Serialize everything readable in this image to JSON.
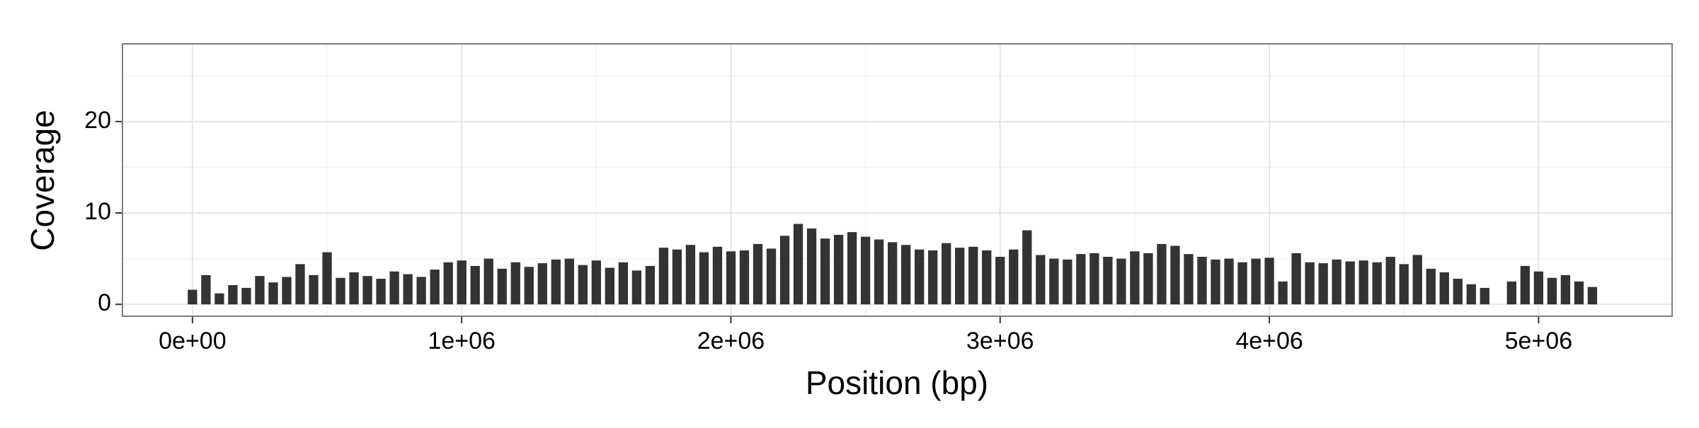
{
  "chart_data": {
    "type": "bar",
    "x_label": "Position (bp)",
    "y_label": "Coverage",
    "color": "#333333",
    "grid": true,
    "xlim": [
      -260000,
      5496000
    ],
    "ylim": [
      -1.3,
      28.5
    ],
    "xticks": [
      {
        "value": 0,
        "label": "0e+00"
      },
      {
        "value": 1000000,
        "label": "1e+06"
      },
      {
        "value": 2000000,
        "label": "2e+06"
      },
      {
        "value": 3000000,
        "label": "3e+06"
      },
      {
        "value": 4000000,
        "label": "4e+06"
      },
      {
        "value": 5000000,
        "label": "5e+06"
      }
    ],
    "yticks": [
      0,
      10,
      20
    ],
    "xminor": [
      500000,
      1500000,
      2500000,
      3500000,
      4500000
    ],
    "yminor": [
      5,
      15,
      25
    ],
    "x": [
      0,
      50000,
      100000,
      150000,
      200000,
      250000,
      300000,
      350000,
      400000,
      450000,
      500000,
      550000,
      600000,
      650000,
      700000,
      750000,
      800000,
      850000,
      900000,
      950000,
      1000000,
      1050000,
      1100000,
      1150000,
      1200000,
      1250000,
      1300000,
      1350000,
      1400000,
      1450000,
      1500000,
      1550000,
      1600000,
      1650000,
      1700000,
      1750000,
      1800000,
      1850000,
      1900000,
      1950000,
      2000000,
      2050000,
      2100000,
      2150000,
      2200000,
      2250000,
      2300000,
      2350000,
      2400000,
      2450000,
      2500000,
      2550000,
      2600000,
      2650000,
      2700000,
      2750000,
      2800000,
      2850000,
      2900000,
      2950000,
      3000000,
      3050000,
      3100000,
      3150000,
      3200000,
      3250000,
      3300000,
      3350000,
      3400000,
      3450000,
      3500000,
      3550000,
      3600000,
      3650000,
      3700000,
      3750000,
      3800000,
      3850000,
      3900000,
      3950000,
      4000000,
      4050000,
      4100000,
      4150000,
      4200000,
      4250000,
      4300000,
      4350000,
      4400000,
      4450000,
      4500000,
      4550000,
      4600000,
      4650000,
      4700000,
      4750000,
      4800000,
      4850000,
      4900000,
      4950000,
      5000000,
      5050000,
      5100000,
      5150000,
      5200000
    ],
    "values": [
      1.6,
      3.2,
      1.2,
      2.1,
      1.8,
      3.1,
      2.4,
      3.0,
      4.4,
      3.2,
      5.7,
      2.9,
      3.5,
      3.1,
      2.8,
      3.6,
      3.3,
      3.0,
      3.8,
      4.6,
      4.8,
      4.2,
      5.0,
      3.9,
      4.6,
      4.1,
      4.5,
      4.9,
      5.0,
      4.3,
      4.8,
      4.0,
      4.6,
      3.7,
      4.2,
      6.2,
      6.0,
      6.5,
      5.7,
      6.3,
      5.8,
      5.9,
      6.6,
      6.1,
      7.5,
      8.8,
      8.3,
      7.2,
      7.6,
      7.9,
      7.4,
      7.1,
      6.8,
      6.5,
      6.0,
      5.9,
      6.7,
      6.2,
      6.3,
      5.9,
      5.2,
      6.0,
      8.1,
      5.4,
      5.0,
      4.9,
      5.5,
      5.6,
      5.2,
      5.0,
      5.8,
      5.6,
      6.6,
      6.4,
      5.5,
      5.2,
      4.9,
      5.0,
      4.6,
      5.0,
      5.1,
      2.5,
      5.6,
      4.6,
      4.5,
      4.9,
      4.7,
      4.8,
      4.6,
      5.2,
      4.4,
      5.4,
      3.9,
      3.5,
      2.8,
      2.2,
      1.8,
      null,
      2.5,
      4.2,
      3.6,
      2.9,
      3.2,
      2.5,
      1.9
    ]
  }
}
